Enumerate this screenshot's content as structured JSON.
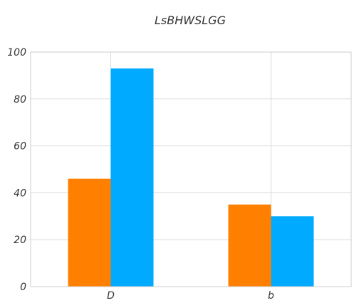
{
  "chart_data": {
    "type": "bar",
    "title": "LsBHWSLGG",
    "xlabel": "",
    "ylabel": "",
    "categories": [
      "D",
      "b"
    ],
    "series": [
      {
        "values": [
          46,
          35
        ],
        "color": "#ff8000"
      },
      {
        "values": [
          93,
          30
        ],
        "color": "#00aaff"
      }
    ],
    "ylim": [
      0,
      100
    ],
    "yticks": [
      0,
      20,
      40,
      60,
      80,
      100
    ],
    "grid": true,
    "legend": "none"
  }
}
